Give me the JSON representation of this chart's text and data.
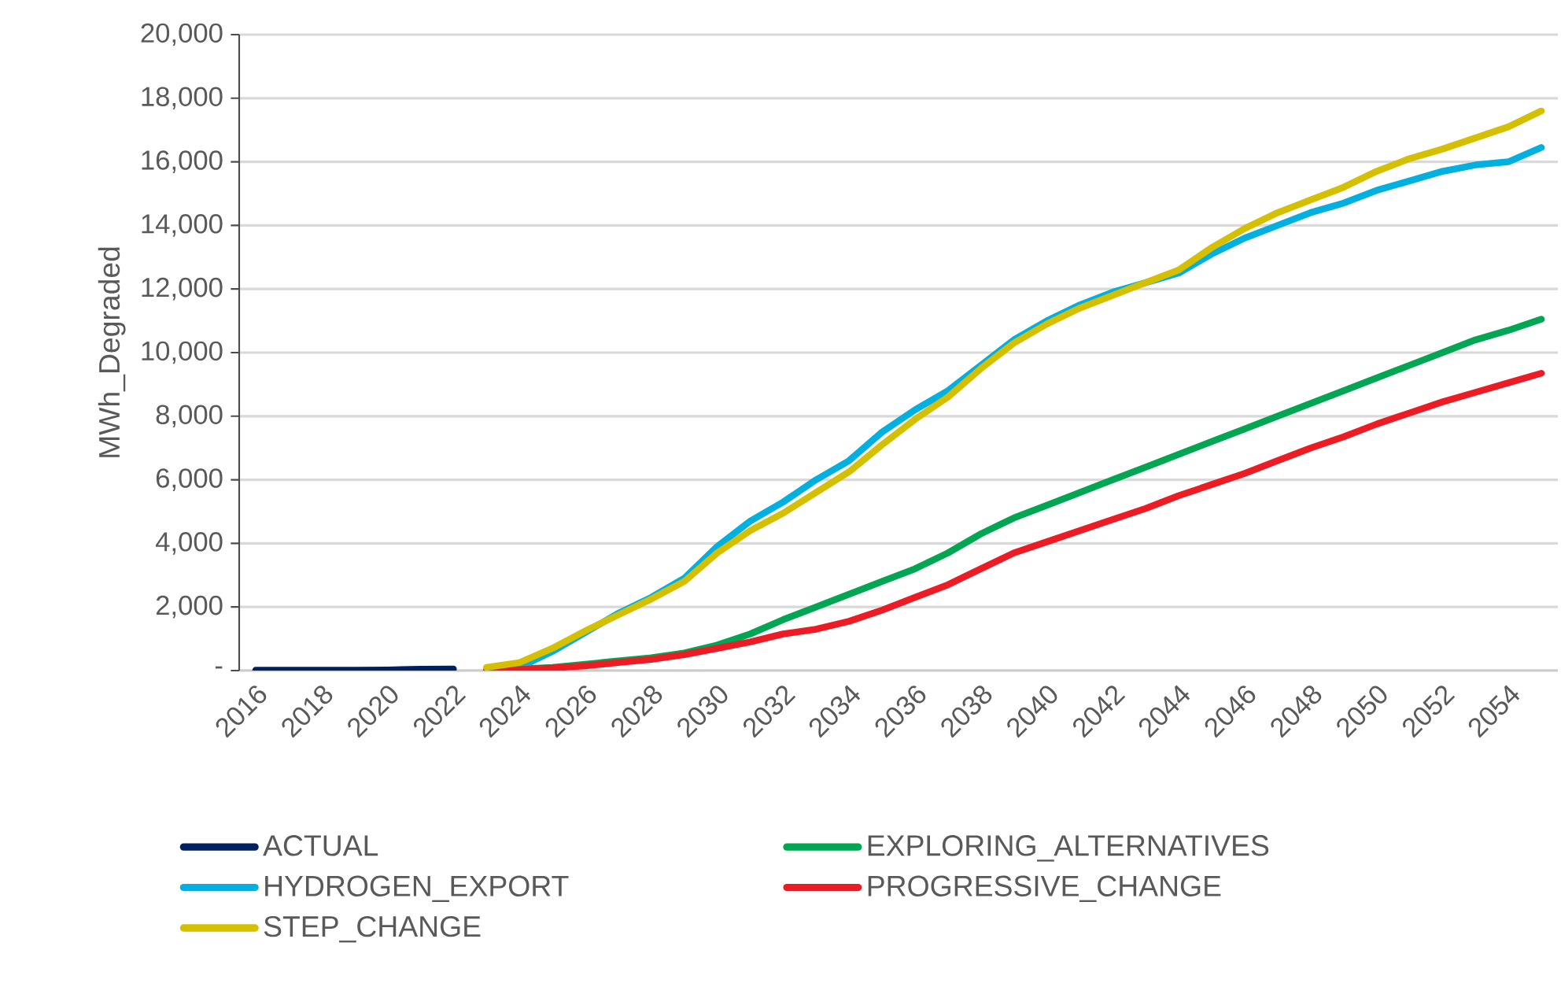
{
  "chart_data": {
    "type": "line",
    "ylabel": "MWh_Degraded",
    "categories": [
      "2016",
      null,
      "2018",
      null,
      "2020",
      null,
      "2022",
      null,
      "2024",
      null,
      "2026",
      null,
      "2028",
      null,
      "2030",
      null,
      "2032",
      null,
      "2034",
      null,
      "2036",
      null,
      "2038",
      null,
      "2040",
      null,
      "2042",
      null,
      "2044",
      null,
      "2046",
      null,
      "2048",
      null,
      "2050",
      null,
      "2052",
      null,
      "2054",
      null
    ],
    "series": [
      {
        "name": "ACTUAL",
        "color": "#002060",
        "values": [
          10,
          10,
          10,
          10,
          20,
          40,
          50,
          null,
          null,
          null,
          null,
          null,
          null,
          null,
          null,
          null,
          null,
          null,
          null,
          null,
          null,
          null,
          null,
          null,
          null,
          null,
          null,
          null,
          null,
          null,
          null,
          null,
          null,
          null,
          null,
          null,
          null,
          null,
          null,
          null
        ]
      },
      {
        "name": "EXPLORING_ALTERNATIVES",
        "color": "#00a651",
        "values": [
          null,
          null,
          null,
          null,
          null,
          null,
          null,
          0,
          50,
          100,
          200,
          300,
          400,
          550,
          800,
          1150,
          1600,
          2000,
          2400,
          2800,
          3200,
          3700,
          4300,
          4800,
          5200,
          5600,
          6000,
          6400,
          6800,
          7200,
          7600,
          8000,
          8400,
          8800,
          9200,
          9600,
          10000,
          10400,
          10700,
          11050
        ]
      },
      {
        "name": "HYDROGEN_EXPORT",
        "color": "#00b0e0",
        "values": [
          null,
          null,
          null,
          null,
          null,
          null,
          null,
          null,
          100,
          600,
          1200,
          1800,
          2300,
          2900,
          3900,
          4700,
          5300,
          6000,
          6600,
          7500,
          8200,
          8800,
          9600,
          10400,
          11000,
          11500,
          11900,
          12200,
          12500,
          13100,
          13600,
          14000,
          14400,
          14700,
          15100,
          15400,
          15700,
          15900,
          16000,
          16450
        ]
      },
      {
        "name": "PROGRESSIVE_CHANGE",
        "color": "#ed1c24",
        "values": [
          null,
          null,
          null,
          null,
          null,
          null,
          null,
          0,
          30,
          80,
          150,
          250,
          350,
          500,
          700,
          900,
          1150,
          1300,
          1550,
          1900,
          2300,
          2700,
          3200,
          3700,
          4050,
          4400,
          4750,
          5100,
          5500,
          5850,
          6200,
          6600,
          7000,
          7350,
          7750,
          8100,
          8450,
          8750,
          9050,
          9350
        ]
      },
      {
        "name": "STEP_CHANGE",
        "color": "#d4c000",
        "values": [
          null,
          null,
          null,
          null,
          null,
          null,
          null,
          100,
          250,
          700,
          1250,
          1750,
          2250,
          2800,
          3700,
          4400,
          4950,
          5600,
          6250,
          7100,
          7900,
          8600,
          9500,
          10300,
          10900,
          11400,
          11800,
          12200,
          12600,
          13300,
          13900,
          14400,
          14800,
          15200,
          15700,
          16100,
          16400,
          16750,
          17100,
          17600
        ]
      }
    ],
    "ylim": [
      0,
      20000
    ],
    "yticks": [
      {
        "value": 0,
        "label": "-"
      },
      {
        "value": 2000,
        "label": "2,000"
      },
      {
        "value": 4000,
        "label": "4,000"
      },
      {
        "value": 6000,
        "label": "6,000"
      },
      {
        "value": 8000,
        "label": "8,000"
      },
      {
        "value": 10000,
        "label": "10,000"
      },
      {
        "value": 12000,
        "label": "12,000"
      },
      {
        "value": 14000,
        "label": "14,000"
      },
      {
        "value": 16000,
        "label": "16,000"
      },
      {
        "value": 18000,
        "label": "18,000"
      },
      {
        "value": 20000,
        "label": "20,000"
      }
    ],
    "grid": "y",
    "legend": "bottom"
  }
}
